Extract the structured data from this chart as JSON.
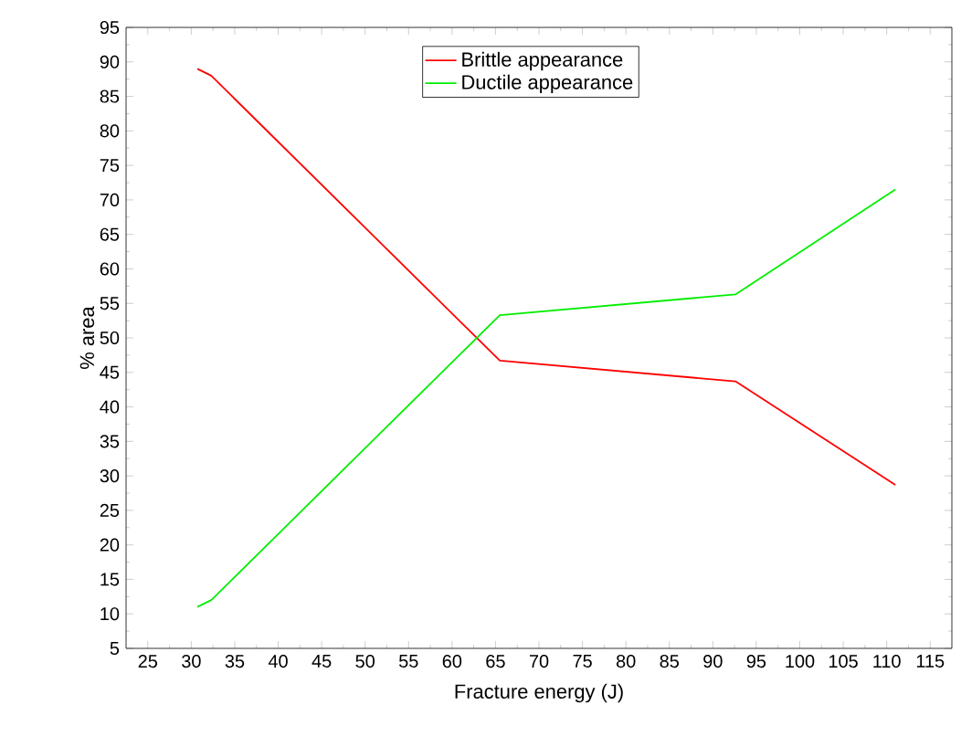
{
  "chart_data": {
    "type": "line",
    "xlabel": "Fracture energy (J)",
    "ylabel": "% area",
    "xlim": [
      22.5,
      117.5
    ],
    "xticks": [
      25,
      30,
      35,
      40,
      45,
      50,
      55,
      60,
      65,
      70,
      75,
      80,
      85,
      90,
      95,
      100,
      105,
      110,
      115
    ],
    "ylim": [
      5,
      95
    ],
    "yticks": [
      5,
      10,
      15,
      20,
      25,
      30,
      35,
      40,
      45,
      50,
      55,
      60,
      65,
      70,
      75,
      80,
      85,
      90,
      95
    ],
    "legend": "top",
    "grid": false,
    "marker": "none",
    "line_style": "solid",
    "series": [
      {
        "name": "Brittle appearance",
        "color": "#ff0000",
        "x": [
          30.7,
          32.3,
          65.5,
          92.6,
          111
        ],
        "values": [
          89,
          88,
          46.7,
          43.7,
          28.7
        ]
      },
      {
        "name": "Ductile appearance",
        "color": "#00ee00",
        "x": [
          30.7,
          32.3,
          65.5,
          92.6,
          111
        ],
        "values": [
          11,
          12,
          53.3,
          56.3,
          71.5
        ]
      }
    ]
  }
}
